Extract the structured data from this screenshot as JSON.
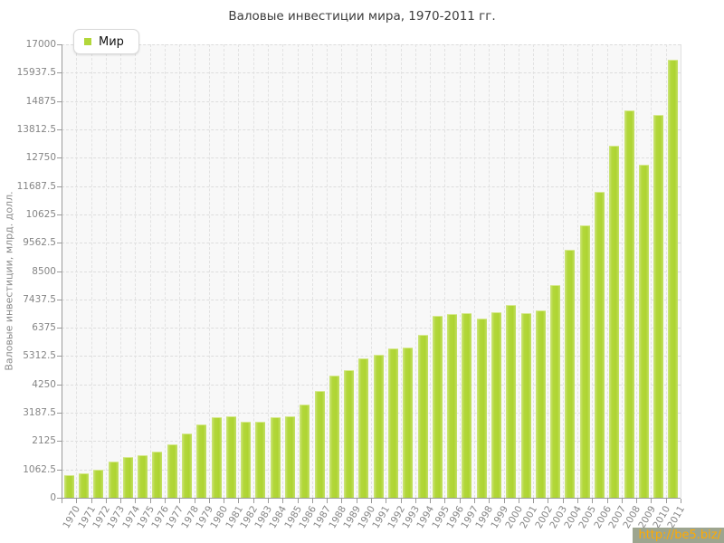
{
  "title": "Валовые инвестиции мира, 1970-2011 гг.",
  "legend": {
    "items": [
      {
        "label": "Мир",
        "color": "#b2d73a"
      }
    ]
  },
  "watermark": {
    "text": "http://be5.biz/",
    "background": "#9da58f",
    "color": "#ffaa00"
  },
  "chart_data": {
    "type": "bar",
    "title": "Валовые инвестиции мира, 1970-2011 гг.",
    "xlabel": "",
    "ylabel": "Валовые инвестиции, млрд. долл.",
    "ylim": [
      0,
      17000
    ],
    "ytick_step": 1062.5,
    "ytick_labels": [
      "0",
      "1062.5",
      "2125",
      "3187.5",
      "4250",
      "5312.5",
      "6375",
      "7437.5",
      "8500",
      "9562.5",
      "10625",
      "11687.5",
      "12750",
      "13812.5",
      "14875",
      "15937.5",
      "17000"
    ],
    "grid": true,
    "legend_position": "top-left",
    "bar_color": "#b2d73a",
    "categories": [
      "1970",
      "1971",
      "1972",
      "1973",
      "1974",
      "1975",
      "1976",
      "1977",
      "1978",
      "1979",
      "1980",
      "1981",
      "1982",
      "1983",
      "1984",
      "1985",
      "1986",
      "1987",
      "1988",
      "1989",
      "1990",
      "1991",
      "1992",
      "1993",
      "1994",
      "1995",
      "1996",
      "1997",
      "1998",
      "1999",
      "2000",
      "2001",
      "2002",
      "2003",
      "2004",
      "2005",
      "2006",
      "2007",
      "2008",
      "2009",
      "2010",
      "2011"
    ],
    "series": [
      {
        "name": "Мир",
        "values": [
          860,
          930,
          1040,
          1370,
          1530,
          1590,
          1730,
          1990,
          2410,
          2760,
          3020,
          3050,
          2860,
          2860,
          3030,
          3040,
          3480,
          3990,
          4580,
          4800,
          5240,
          5360,
          5610,
          5630,
          6100,
          6820,
          6890,
          6910,
          6710,
          6940,
          7230,
          6910,
          7010,
          7960,
          9290,
          10230,
          11470,
          13200,
          14530,
          12490,
          14360,
          16430
        ]
      }
    ]
  }
}
